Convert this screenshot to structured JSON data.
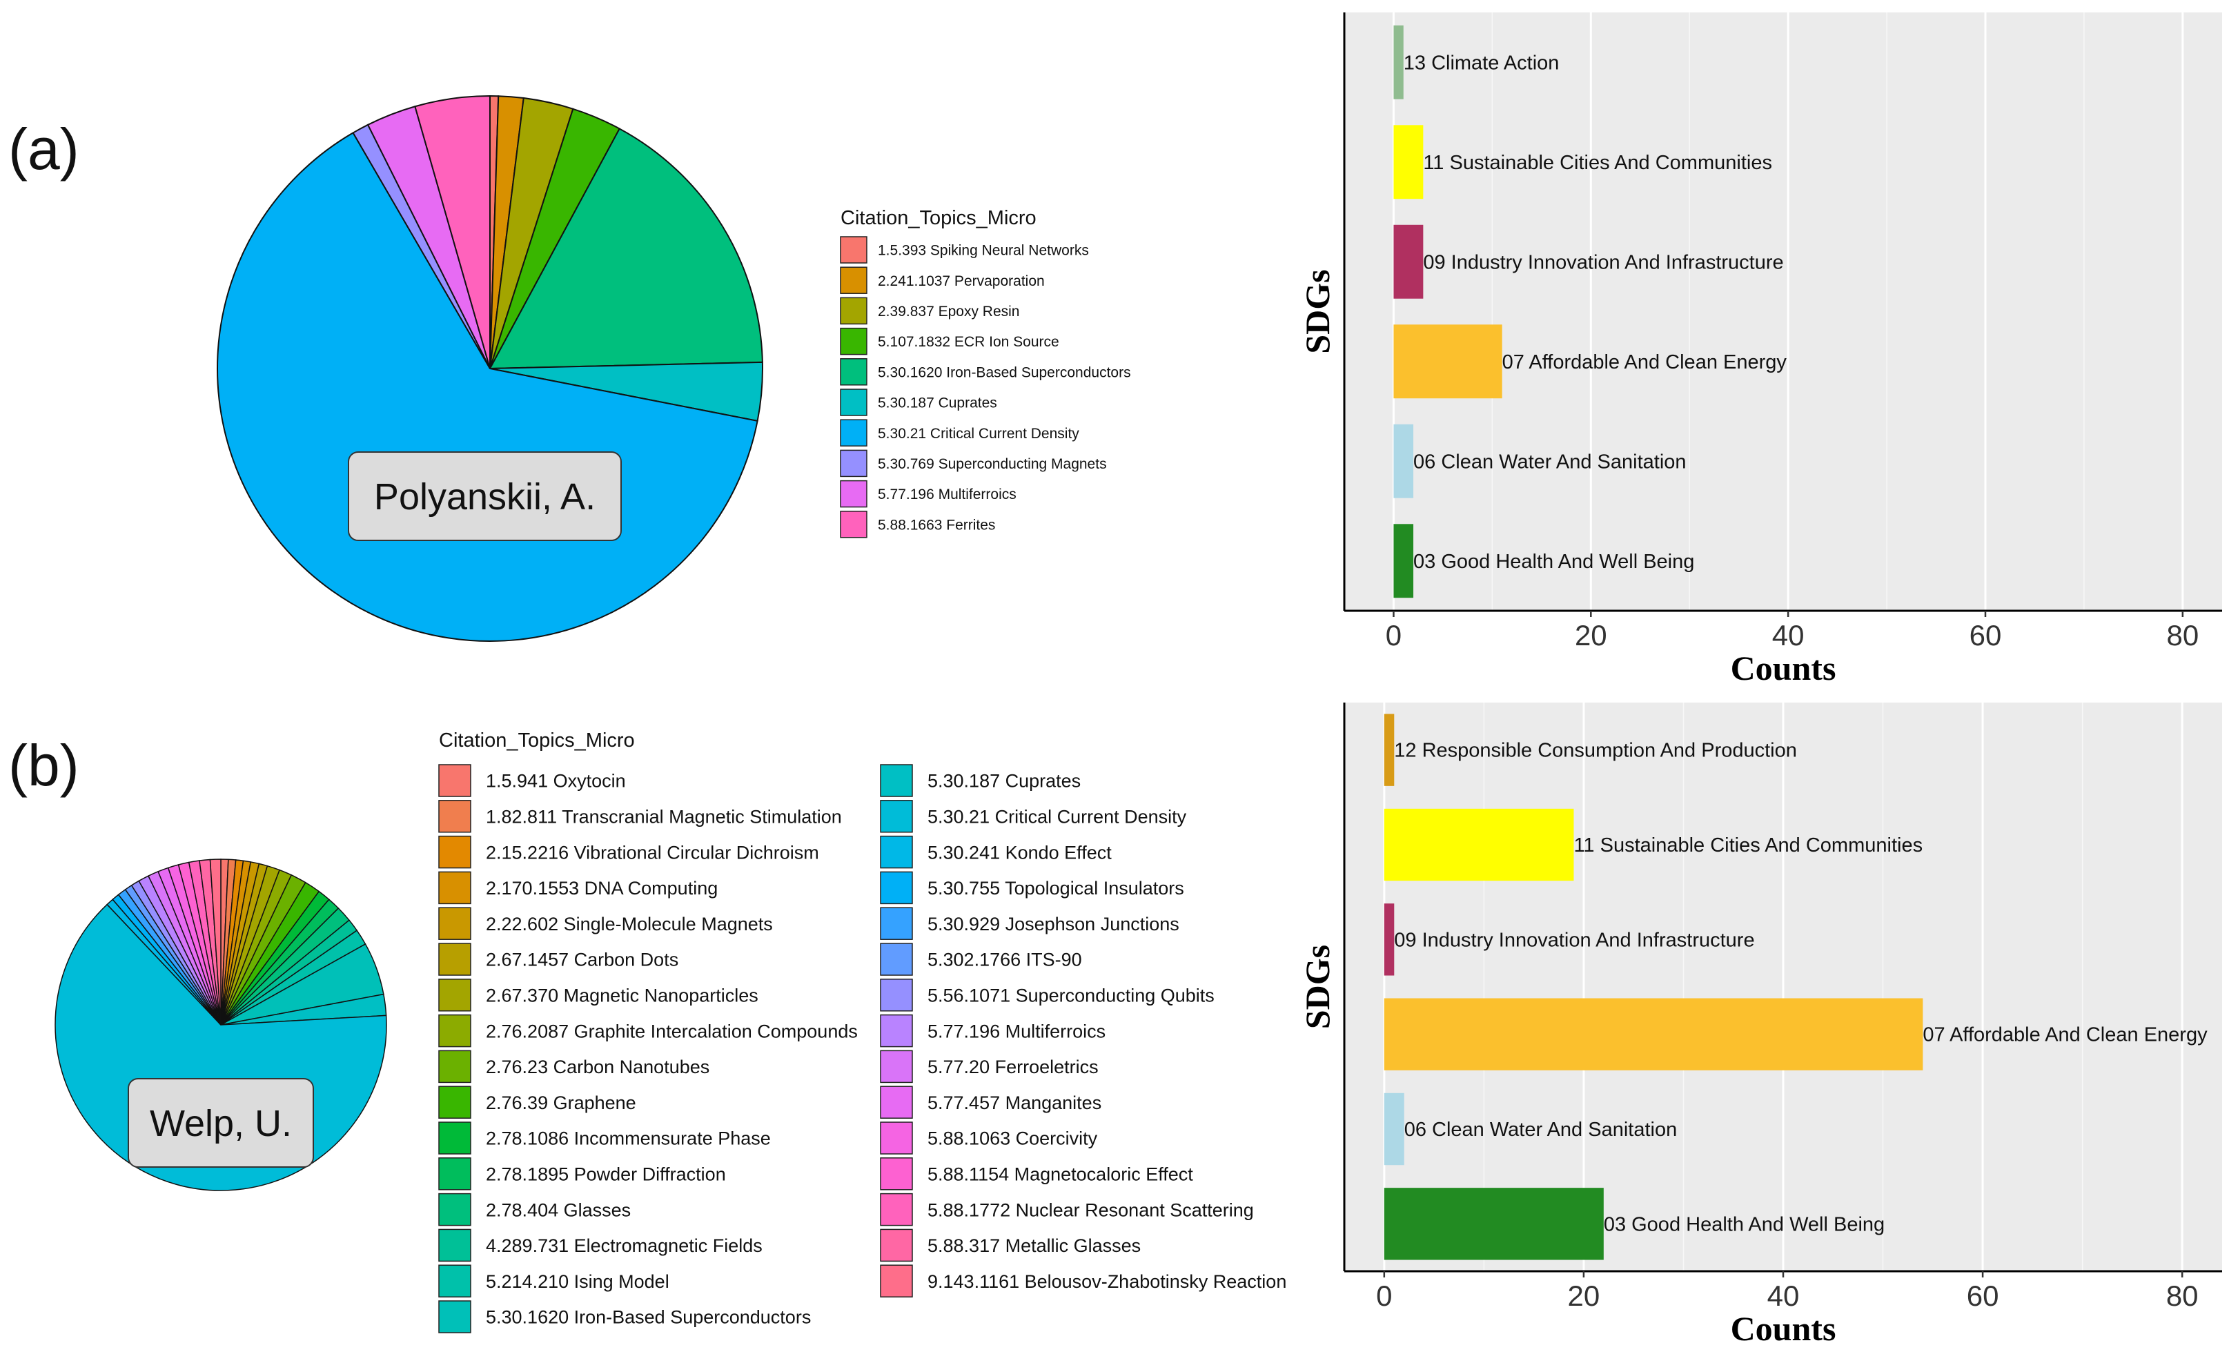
{
  "figure": {
    "panel_a_label": "(a)",
    "panel_b_label": "(b)"
  },
  "chart_data": [
    {
      "id": "pie_a",
      "type": "pie",
      "title": "Polyanskii, A.",
      "legend_title": "Citation_Topics_Micro",
      "slices": [
        {
          "label": "1.5.393 Spiking Neural Networks",
          "value": 0.5,
          "color": "#f8766d"
        },
        {
          "label": "2.241.1037 Pervaporation",
          "value": 1.5,
          "color": "#d89000"
        },
        {
          "label": "2.39.837 Epoxy Resin",
          "value": 3,
          "color": "#a3a500"
        },
        {
          "label": "5.107.1832 ECR Ion Source",
          "value": 3,
          "color": "#39b600"
        },
        {
          "label": "5.30.1620 Iron-Based Superconductors",
          "value": 17,
          "color": "#00bf7d"
        },
        {
          "label": "5.30.187 Cuprates",
          "value": 3.5,
          "color": "#00bfc4"
        },
        {
          "label": "5.30.21 Critical Current Density",
          "value": 64.5,
          "color": "#00b0f6"
        },
        {
          "label": "5.30.769 Superconducting Magnets",
          "value": 1,
          "color": "#9590ff"
        },
        {
          "label": "5.77.196 Multiferroics",
          "value": 3,
          "color": "#e76bf3"
        },
        {
          "label": "5.88.1663 Ferrites",
          "value": 4.5,
          "color": "#ff62bc"
        }
      ]
    },
    {
      "id": "bar_a",
      "type": "bar",
      "orientation": "horizontal",
      "xlabel": "Counts",
      "ylabel": "SDGs",
      "xlim": [
        -5,
        84
      ],
      "xticks": [
        0,
        20,
        40,
        60,
        80
      ],
      "tick_labels": [
        "0",
        "20",
        "40",
        "60",
        "80"
      ],
      "grid": true,
      "bars": [
        {
          "label": "13 Climate Action",
          "value": 1,
          "color": "#8fbc8f"
        },
        {
          "label": "11 Sustainable Cities And Communities",
          "value": 3,
          "color": "#ffff00"
        },
        {
          "label": "09 Industry Innovation And Infrastructure",
          "value": 3,
          "color": "#b03060"
        },
        {
          "label": "07 Affordable And Clean Energy",
          "value": 11,
          "color": "#fbc02d"
        },
        {
          "label": "06 Clean Water And Sanitation",
          "value": 2,
          "color": "#add8e6"
        },
        {
          "label": "03 Good Health And Well Being",
          "value": 2,
          "color": "#228b22"
        }
      ]
    },
    {
      "id": "pie_b",
      "type": "pie",
      "title": "Welp, U.",
      "legend_title": "Citation_Topics_Micro",
      "slices": [
        {
          "label": "1.5.941 Oxytocin",
          "value": 0.7,
          "color": "#f8766d"
        },
        {
          "label": "1.82.811 Transcranial Magnetic Stimulation",
          "value": 0.7,
          "color": "#f07e4e"
        },
        {
          "label": "2.15.2216 Vibrational Circular Dichroism",
          "value": 0.7,
          "color": "#e38900"
        },
        {
          "label": "2.170.1553 DNA Computing",
          "value": 0.7,
          "color": "#d89000"
        },
        {
          "label": "2.22.602 Single-Molecule Magnets",
          "value": 0.8,
          "color": "#c99800"
        },
        {
          "label": "2.67.1457 Carbon Dots",
          "value": 0.8,
          "color": "#b79f00"
        },
        {
          "label": "2.67.370 Magnetic Nanoparticles",
          "value": 1.2,
          "color": "#a3a500"
        },
        {
          "label": "2.76.2087 Graphite Intercalation Compounds",
          "value": 1.2,
          "color": "#8cab00"
        },
        {
          "label": "2.76.23 Carbon Nanotubes",
          "value": 1.5,
          "color": "#6bb100"
        },
        {
          "label": "2.76.39 Graphene",
          "value": 1.5,
          "color": "#39b600"
        },
        {
          "label": "2.78.1086 Incommensurate Phase",
          "value": 1.2,
          "color": "#00ba38"
        },
        {
          "label": "2.78.1895 Powder Diffraction",
          "value": 1.2,
          "color": "#00bd5c"
        },
        {
          "label": "2.78.404 Glasses",
          "value": 1.5,
          "color": "#00bf7d"
        },
        {
          "label": "4.289.731 Electromagnetic Fields",
          "value": 1.2,
          "color": "#00c097"
        },
        {
          "label": "5.214.210 Ising Model",
          "value": 1.5,
          "color": "#00c1aa"
        },
        {
          "label": "5.30.1620 Iron-Based Superconductors",
          "value": 5,
          "color": "#00c0b8"
        },
        {
          "label": "5.30.187 Cuprates",
          "value": 2,
          "color": "#00bfc4"
        },
        {
          "label": "5.30.21 Critical Current Density",
          "value": 62,
          "color": "#00bcd8"
        },
        {
          "label": "5.30.241 Kondo Effect",
          "value": 0.7,
          "color": "#00b8e7"
        },
        {
          "label": "5.30.755 Topological Insulators",
          "value": 0.7,
          "color": "#00b0f6"
        },
        {
          "label": "5.30.929 Josephson Junctions",
          "value": 0.8,
          "color": "#35a2ff"
        },
        {
          "label": "5.302.1766 ITS-90",
          "value": 0.7,
          "color": "#619cff"
        },
        {
          "label": "5.56.1071 Superconducting Qubits",
          "value": 0.8,
          "color": "#9590ff"
        },
        {
          "label": "5.77.196 Multiferroics",
          "value": 1,
          "color": "#b983ff"
        },
        {
          "label": "5.77.20 Ferroeletrics",
          "value": 1,
          "color": "#d974f8"
        },
        {
          "label": "5.77.457 Manganites",
          "value": 1,
          "color": "#e76bf3"
        },
        {
          "label": "5.88.1063 Coercivity",
          "value": 1,
          "color": "#f564e3"
        },
        {
          "label": "5.88.1154 Magnetocaloric Effect",
          "value": 1,
          "color": "#fd61d1"
        },
        {
          "label": "5.88.1772 Nuclear Resonant Scattering",
          "value": 1,
          "color": "#ff62bc"
        },
        {
          "label": "5.88.317 Metallic Glasses",
          "value": 1,
          "color": "#ff67a4"
        },
        {
          "label": "9.143.1161 Belousov-Zhabotinsky Reaction",
          "value": 1,
          "color": "#fe6e8a"
        }
      ]
    },
    {
      "id": "bar_b",
      "type": "bar",
      "orientation": "horizontal",
      "xlabel": "Counts",
      "ylabel": "SDGs",
      "xlim": [
        -4,
        84
      ],
      "xticks": [
        0,
        20,
        40,
        60,
        80
      ],
      "tick_labels": [
        "0",
        "20",
        "40",
        "60",
        "80"
      ],
      "grid": true,
      "bars": [
        {
          "label": "12 Responsible Consumption And Production",
          "value": 1,
          "color": "#d89b16"
        },
        {
          "label": "11 Sustainable Cities And Communities",
          "value": 19,
          "color": "#ffff00"
        },
        {
          "label": "09 Industry Innovation And Infrastructure",
          "value": 1,
          "color": "#b03060"
        },
        {
          "label": "07 Affordable And Clean Energy",
          "value": 54,
          "color": "#fbc02d"
        },
        {
          "label": "06 Clean Water And Sanitation",
          "value": 2,
          "color": "#add8e6"
        },
        {
          "label": "03 Good Health And Well Being",
          "value": 22,
          "color": "#228b22"
        }
      ]
    }
  ]
}
